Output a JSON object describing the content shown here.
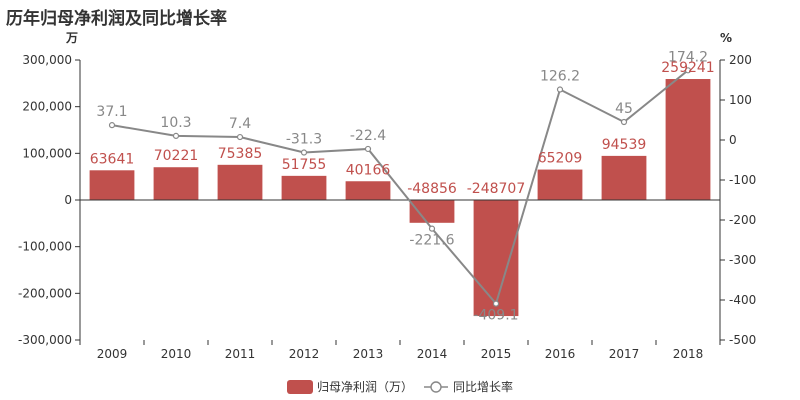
{
  "chart_data": {
    "type": "bar",
    "title": "历年归母净利润及同比增长率",
    "categories": [
      "2009",
      "2010",
      "2011",
      "2012",
      "2013",
      "2014",
      "2015",
      "2016",
      "2017",
      "2018"
    ],
    "left_axis": {
      "unit": "万",
      "ylim": [
        -300000,
        300000
      ],
      "ticks": [
        -300000,
        -200000,
        -100000,
        0,
        100000,
        200000,
        300000
      ],
      "tick_labels": [
        "-300,000",
        "-200,000",
        "-100,000",
        "0",
        "100,000",
        "200,000",
        "300,000"
      ]
    },
    "right_axis": {
      "unit": "%",
      "ylim": [
        -500,
        200
      ],
      "ticks": [
        -500,
        -400,
        -300,
        -200,
        -100,
        0,
        100,
        200
      ],
      "tick_labels": [
        "-500",
        "-400",
        "-300",
        "-200",
        "-100",
        "0",
        "100",
        "200"
      ]
    },
    "series": [
      {
        "name": "归母净利润（万）",
        "type": "bar",
        "axis": "left",
        "values": [
          63641,
          70221,
          75385,
          51755,
          40166,
          -48856,
          -248707,
          65209,
          94539,
          259241
        ],
        "labels": [
          "63641",
          "70221",
          "75385",
          "51755",
          "40166",
          "-48856",
          "-248707",
          "65209",
          "94539",
          "259241"
        ]
      },
      {
        "name": "同比增长率",
        "type": "line",
        "axis": "right",
        "values": [
          37.1,
          10.3,
          7.4,
          -31.3,
          -22.4,
          -221.6,
          -409.1,
          126.2,
          45,
          174.2
        ],
        "labels": [
          "37.1",
          "10.3",
          "7.4",
          "-31.3",
          "-22.4",
          "-221.6",
          "-409.1",
          "126.2",
          "45",
          "174.2"
        ]
      }
    ],
    "colors": {
      "bar": "#c0504d",
      "line": "#888888",
      "bar_label": "#c0504d",
      "line_label": "#888888",
      "axis": "#333333"
    },
    "grid": false,
    "legend_position": "bottom-center"
  }
}
